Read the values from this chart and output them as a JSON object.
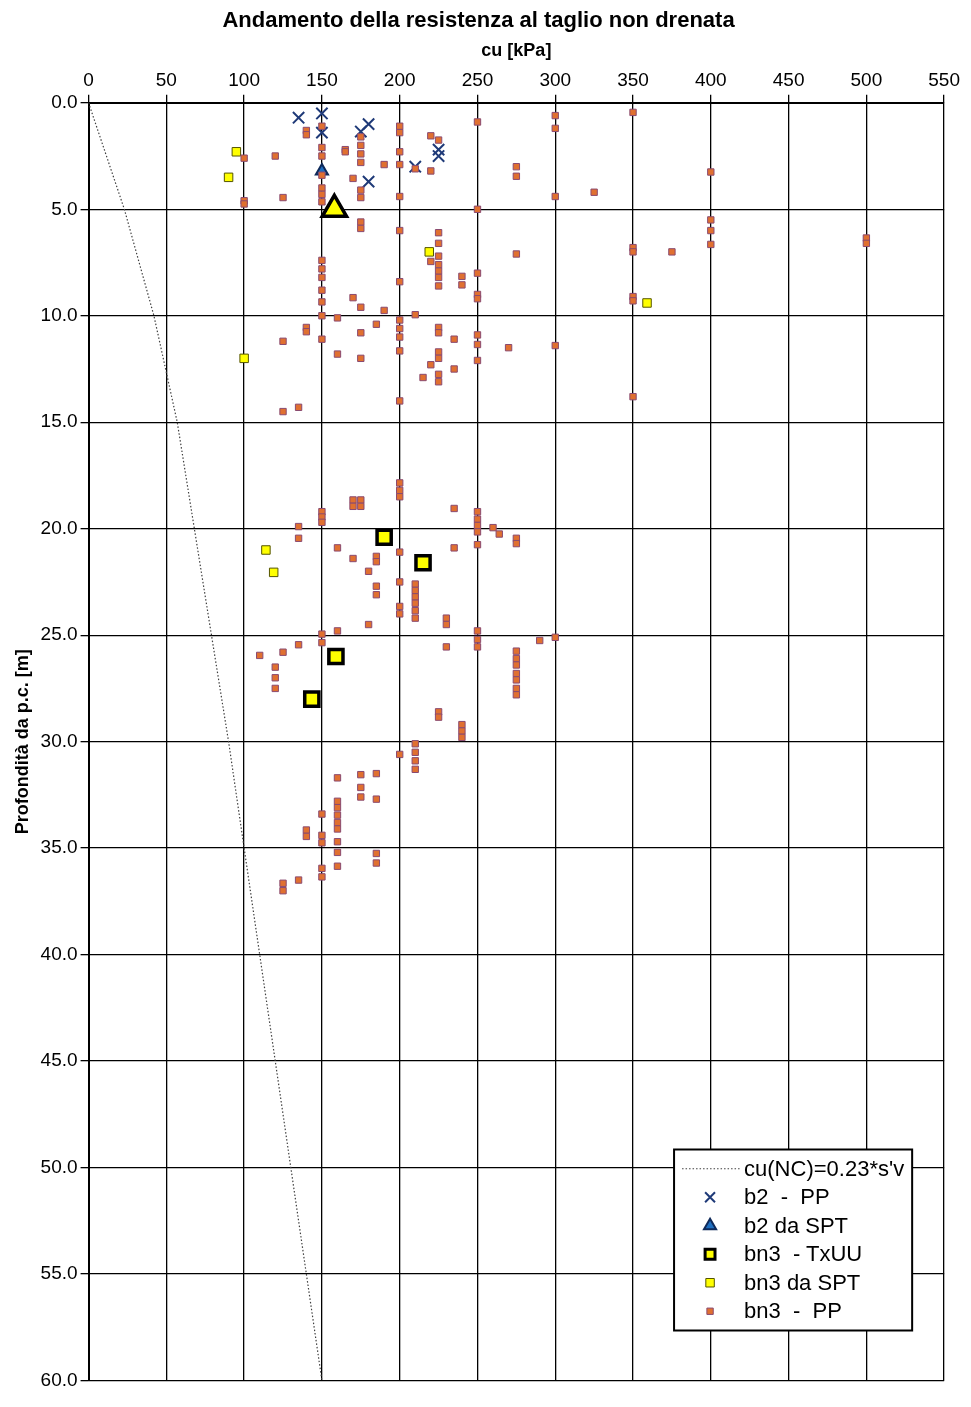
{
  "chart_data": {
    "type": "scatter",
    "title": "Andamento della resistenza al taglio non drenata",
    "xlabel": "cu [kPa]",
    "ylabel": "Profondità da p.c. [m]",
    "xlim": [
      0,
      550
    ],
    "xticks": [
      0,
      50,
      100,
      150,
      200,
      250,
      300,
      350,
      400,
      450,
      500,
      550
    ],
    "ylim": [
      60,
      0
    ],
    "yticks": [
      {
        "value": 0,
        "label": "0.0"
      },
      {
        "value": 5,
        "label": "5.0"
      },
      {
        "value": 10,
        "label": "10.0"
      },
      {
        "value": 15,
        "label": "15.0"
      },
      {
        "value": 20,
        "label": "20.0"
      },
      {
        "value": 25,
        "label": "25.0"
      },
      {
        "value": 30,
        "label": "30.0"
      },
      {
        "value": 35,
        "label": "35.0"
      },
      {
        "value": 40,
        "label": "40.0"
      },
      {
        "value": 45,
        "label": "45.0"
      },
      {
        "value": 50,
        "label": "50.0"
      },
      {
        "value": 55,
        "label": "55.0"
      },
      {
        "value": 60,
        "label": "60.0"
      }
    ],
    "grid": true,
    "legend": "bottom right",
    "series": [
      {
        "name": "cu(NC)=0.23*s'v",
        "type": "line",
        "color": "#404040",
        "line_style": "dotted",
        "marker": "none",
        "x": [
          0,
          23,
          42,
          57,
          68,
          79,
          90,
          100,
          110,
          120,
          130,
          140,
          150
        ],
        "values": [
          0,
          5,
          10,
          15,
          20,
          25,
          30,
          35,
          40,
          45,
          50,
          55,
          60
        ]
      },
      {
        "name": "b2  -  PP",
        "color": "#1f3a78",
        "marker": "cross",
        "x": [
          135,
          150,
          150,
          180,
          175,
          225,
          225,
          210,
          180
        ],
        "values": [
          0.7,
          0.5,
          1.4,
          1.0,
          1.35,
          2.2,
          2.5,
          3.0,
          3.7
        ]
      },
      {
        "name": "b2 da SPT",
        "color": "#1f6fc0",
        "marker": "triangle",
        "x": [
          150
        ],
        "values": [
          3.2
        ]
      },
      {
        "name": "bn3  - TxUU",
        "color": "#ffff00",
        "marker": "square",
        "x": [
          190,
          215,
          159,
          143.5
        ],
        "values": [
          20.4,
          21.6,
          26.0,
          28.0
        ]
      },
      {
        "name": "bn3 da SPT",
        "color": "#ffff00",
        "marker": "square",
        "x": [
          95,
          90,
          100,
          359,
          219,
          114,
          119
        ],
        "values": [
          2.3,
          3.5,
          12.0,
          9.4,
          7.0,
          21.0,
          22.05
        ]
      },
      {
        "name": "bn3  -  PP",
        "color": "#e07030",
        "marker": "square",
        "x": [
          140,
          140,
          150,
          150,
          150,
          100,
          120,
          165,
          165,
          175,
          175,
          175,
          175,
          200,
          200,
          200,
          200,
          190,
          220,
          225,
          210,
          220,
          250,
          300,
          300,
          275,
          275,
          300,
          150,
          150,
          150,
          150,
          170,
          175,
          175,
          200,
          100,
          100,
          125,
          250,
          175,
          175,
          200,
          225,
          225,
          225,
          220,
          225,
          225,
          225,
          225,
          275,
          250,
          250,
          250,
          240,
          240,
          200,
          150,
          150,
          150,
          150,
          150,
          150,
          170,
          175,
          190,
          160,
          210,
          200,
          200,
          200,
          140,
          140,
          185,
          225,
          225,
          235,
          250,
          250,
          125,
          150,
          175,
          200,
          160,
          175,
          225,
          225,
          220,
          235,
          250,
          215,
          225,
          225,
          270,
          300,
          200,
          125,
          135,
          350,
          400,
          325,
          400,
          400,
          400,
          500,
          500,
          350,
          350,
          375,
          350,
          350,
          350,
          200,
          200,
          200,
          170,
          175,
          170,
          175,
          150,
          150,
          150,
          235,
          250,
          250,
          250,
          250,
          260,
          264,
          275,
          275,
          250,
          135,
          135,
          160,
          235,
          170,
          185,
          185,
          180,
          200,
          200,
          210,
          210,
          210,
          210,
          210,
          210,
          200,
          200,
          185,
          185,
          180,
          230,
          230,
          160,
          150,
          150,
          250,
          250,
          250,
          230,
          290,
          300,
          135,
          125,
          110,
          120,
          120,
          120,
          275,
          275,
          275,
          275,
          275,
          275,
          275,
          225,
          225,
          240,
          240,
          240,
          200,
          210,
          210,
          210,
          210,
          160,
          175,
          185,
          175,
          175,
          185,
          150,
          160,
          160,
          160,
          160,
          160,
          140,
          140,
          150,
          150,
          160,
          160,
          185,
          185,
          160,
          150,
          150,
          135,
          125,
          125
        ],
        "values": [
          1.3,
          1.5,
          1.1,
          2.1,
          2.5,
          2.6,
          2.5,
          2.2,
          2.3,
          1.6,
          2.0,
          2.4,
          2.8,
          1.1,
          1.4,
          2.3,
          2.9,
          2.9,
          1.55,
          1.75,
          3.1,
          3.2,
          0.9,
          0.6,
          1.2,
          3.0,
          3.45,
          4.4,
          3.4,
          4.0,
          4.3,
          4.65,
          3.55,
          4.1,
          4.45,
          4.4,
          4.6,
          4.75,
          4.45,
          5.0,
          5.6,
          5.9,
          6.0,
          6.1,
          6.6,
          7.2,
          7.45,
          7.6,
          7.9,
          8.2,
          8.6,
          7.1,
          8.0,
          9.0,
          9.2,
          8.15,
          8.55,
          8.4,
          7.4,
          7.8,
          8.2,
          8.8,
          9.35,
          10.0,
          9.15,
          9.6,
          9.75,
          10.1,
          9.95,
          10.2,
          10.6,
          11.0,
          10.55,
          10.75,
          10.4,
          10.55,
          10.8,
          11.1,
          10.9,
          11.35,
          11.2,
          11.1,
          10.8,
          11.65,
          11.8,
          12.0,
          11.7,
          12.0,
          12.3,
          12.5,
          12.1,
          12.9,
          12.75,
          13.1,
          11.5,
          11.4,
          14.0,
          14.5,
          14.3,
          0.45,
          3.25,
          4.2,
          5.5,
          6.0,
          6.65,
          6.35,
          6.6,
          6.8,
          7.0,
          7.0,
          9.1,
          9.3,
          13.8,
          17.85,
          18.2,
          18.5,
          18.65,
          18.65,
          18.95,
          18.95,
          19.2,
          19.45,
          19.7,
          19.05,
          19.2,
          19.55,
          19.85,
          20.15,
          19.95,
          20.25,
          20.45,
          20.7,
          20.75,
          19.9,
          20.45,
          20.9,
          20.9,
          21.4,
          21.3,
          21.55,
          22.0,
          21.1,
          22.5,
          22.6,
          22.9,
          23.2,
          23.5,
          23.85,
          24.2,
          23.65,
          24.0,
          22.7,
          23.1,
          24.5,
          24.2,
          24.5,
          24.8,
          24.95,
          25.35,
          24.8,
          25.2,
          25.55,
          25.55,
          25.25,
          25.1,
          25.45,
          25.8,
          25.95,
          26.5,
          27.0,
          27.5,
          25.75,
          26.1,
          26.4,
          26.8,
          27.1,
          27.5,
          27.8,
          28.6,
          28.85,
          29.2,
          29.5,
          29.8,
          30.6,
          30.1,
          30.5,
          30.9,
          31.3,
          31.7,
          31.55,
          31.5,
          32.15,
          32.6,
          32.7,
          33.4,
          32.8,
          33.1,
          33.45,
          33.8,
          34.1,
          34.15,
          34.45,
          34.4,
          34.75,
          34.7,
          35.2,
          35.25,
          35.7,
          35.85,
          35.95,
          36.35,
          36.5,
          36.65,
          37.0
        ]
      },
      {
        "color": "#ffff00",
        "marker": "triangle",
        "x": [
          158
        ],
        "values": [
          5.0
        ]
      }
    ]
  }
}
